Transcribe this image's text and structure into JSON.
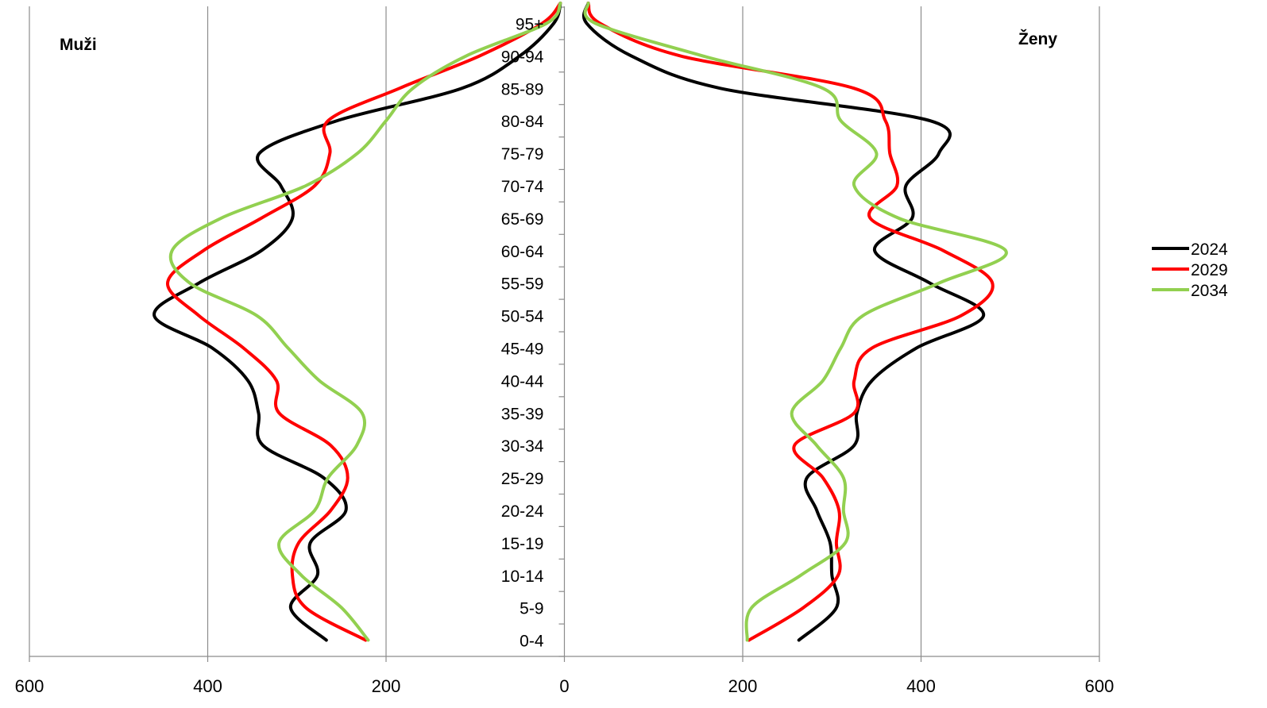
{
  "chart_data": {
    "type": "line",
    "title": "",
    "xlabel": "",
    "ylabel": "",
    "layout": "population-pyramid",
    "xlim": [
      -600,
      600
    ],
    "x_ticks": [
      -600,
      -400,
      -200,
      0,
      200,
      400,
      600
    ],
    "x_tick_labels": [
      "600",
      "400",
      "200",
      "0",
      "200",
      "400",
      "600"
    ],
    "grid": true,
    "legend_position": "right",
    "side_labels": {
      "left": "Muži",
      "right": "Ženy"
    },
    "categories": [
      "0-4",
      "5-9",
      "10-14",
      "15-19",
      "20-24",
      "25-29",
      "30-34",
      "35-39",
      "40-44",
      "45-49",
      "50-54",
      "55-59",
      "60-64",
      "65-69",
      "70-74",
      "75-79",
      "80-84",
      "85-89",
      "90-94",
      "95+"
    ],
    "series": [
      {
        "name": "2024",
        "color": "#000000",
        "men": [
          267,
          307,
          277,
          285,
          245,
          270,
          338,
          343,
          355,
          395,
          460,
          410,
          340,
          305,
          318,
          342,
          255,
          115,
          50,
          12
        ],
        "women": [
          263,
          305,
          300,
          298,
          283,
          272,
          325,
          328,
          345,
          395,
          470,
          410,
          348,
          390,
          383,
          420,
          410,
          175,
          75,
          25
        ]
      },
      {
        "name": "2029",
        "color": "#ff0000",
        "men": [
          223,
          290,
          305,
          298,
          262,
          243,
          262,
          320,
          323,
          360,
          410,
          445,
          405,
          340,
          280,
          263,
          265,
          185,
          95,
          25
        ],
        "women": [
          207,
          268,
          307,
          305,
          308,
          290,
          258,
          325,
          325,
          345,
          445,
          480,
          425,
          343,
          373,
          365,
          360,
          325,
          130,
          40
        ]
      },
      {
        "name": "2034",
        "color": "#92d050",
        "men": [
          220,
          250,
          295,
          320,
          280,
          265,
          233,
          227,
          275,
          310,
          345,
          420,
          440,
          385,
          290,
          232,
          200,
          170,
          110,
          20
        ],
        "women": [
          205,
          210,
          265,
          315,
          313,
          313,
          283,
          255,
          290,
          310,
          335,
          420,
          495,
          375,
          325,
          350,
          310,
          290,
          155,
          35
        ]
      }
    ]
  }
}
